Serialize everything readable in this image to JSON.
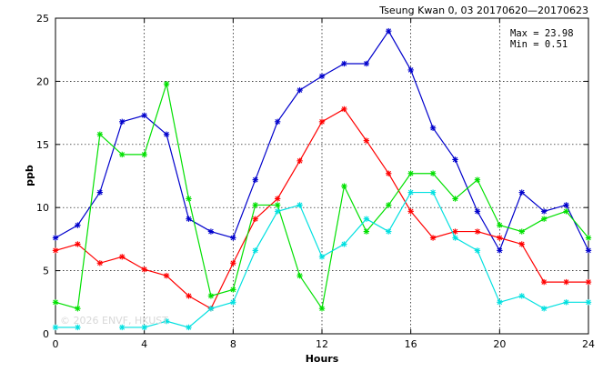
{
  "chart_data": {
    "type": "line",
    "title": "Tseung Kwan 0, 03 20170620—20170623",
    "xlabel": "Hours",
    "ylabel": "ppb",
    "xlim": [
      0,
      24
    ],
    "ylim": [
      0,
      25
    ],
    "xticks": [
      0,
      4,
      8,
      12,
      16,
      20,
      24
    ],
    "yticks": [
      0,
      5,
      10,
      15,
      20,
      25
    ],
    "grid": true,
    "stats": {
      "max": "Max = 23.98",
      "min": "Min =  0.51"
    },
    "watermark": "© 2026 ENVF, HKUST",
    "x": [
      0,
      1,
      2,
      3,
      4,
      5,
      6,
      7,
      8,
      9,
      10,
      11,
      12,
      13,
      14,
      15,
      16,
      17,
      18,
      19,
      20,
      21,
      22,
      23,
      24
    ],
    "series": [
      {
        "color": "#0000cc",
        "values": [
          7.6,
          8.6,
          11.2,
          16.8,
          17.3,
          15.8,
          9.1,
          8.1,
          7.6,
          12.2,
          16.8,
          19.3,
          20.4,
          21.4,
          21.4,
          23.98,
          20.9,
          16.3,
          13.8,
          9.7,
          6.6,
          11.2,
          9.7,
          10.2,
          6.6
        ]
      },
      {
        "color": "#ff0000",
        "values": [
          6.6,
          7.1,
          5.6,
          6.1,
          5.1,
          4.6,
          3.0,
          2.0,
          5.6,
          9.1,
          10.7,
          13.7,
          16.8,
          17.8,
          15.3,
          12.7,
          9.7,
          7.6,
          8.1,
          8.1,
          7.6,
          7.1,
          4.1,
          4.1,
          4.1
        ]
      },
      {
        "color": "#00e000",
        "values": [
          2.5,
          2.0,
          15.8,
          14.2,
          14.2,
          19.8,
          10.7,
          3.0,
          3.5,
          10.2,
          10.2,
          4.6,
          2.0,
          11.7,
          8.1,
          10.2,
          12.7,
          12.7,
          10.7,
          12.2,
          8.6,
          8.1,
          9.1,
          9.7,
          7.6
        ]
      },
      {
        "color": "#00e0e0",
        "values": [
          0.51,
          0.51,
          null,
          0.51,
          0.51,
          1.0,
          0.51,
          2.0,
          2.5,
          6.6,
          9.7,
          10.2,
          6.1,
          7.1,
          9.1,
          8.1,
          11.2,
          11.2,
          7.6,
          6.6,
          2.5,
          3.0,
          2.0,
          2.5,
          2.5
        ]
      }
    ]
  }
}
